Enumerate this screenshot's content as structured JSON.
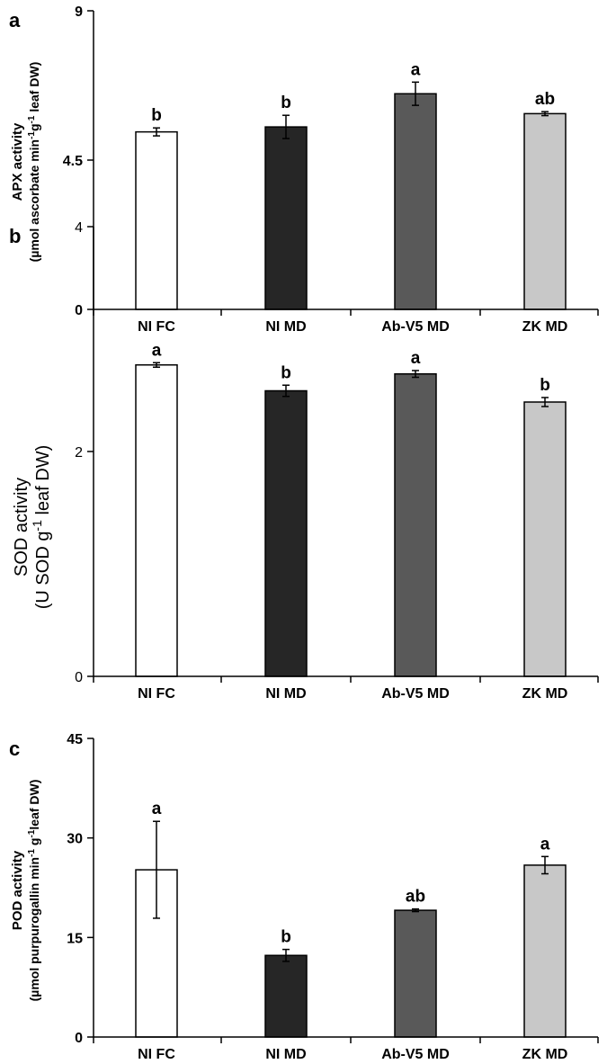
{
  "chart_data": [
    {
      "type": "bar",
      "panel_label": "a",
      "categories": [
        "NI FC",
        "NI MD",
        "Ab-V5 MD",
        "ZK MD"
      ],
      "values": [
        5.35,
        5.5,
        6.5,
        5.9
      ],
      "errors": [
        0.12,
        0.35,
        0.35,
        0.06
      ],
      "letters": [
        "b",
        "b",
        "a",
        "ab"
      ],
      "colors": [
        "#ffffff",
        "#262626",
        "#595959",
        "#c8c8c8"
      ],
      "ylim": [
        0,
        9
      ],
      "yticks": [
        "0",
        "4.5",
        "9"
      ],
      "ytick_values": [
        0,
        4.5,
        9
      ],
      "ylabel": "APX activity",
      "ylabel_units": {
        "pre": "(µmol ascorbate min",
        "sup1": "-1",
        "mid": "g",
        "sup2": "-1",
        "post": " leaf DW)"
      },
      "label_weight": "bold"
    },
    {
      "type": "bar",
      "panel_label": "b",
      "categories": [
        "NI FC",
        "NI MD",
        "Ab-V5 MD",
        "ZK MD"
      ],
      "values": [
        2.77,
        2.54,
        2.69,
        2.44
      ],
      "errors": [
        0.02,
        0.05,
        0.03,
        0.04
      ],
      "letters": [
        "a",
        "b",
        "a",
        "b"
      ],
      "colors": [
        "#ffffff",
        "#262626",
        "#595959",
        "#c8c8c8"
      ],
      "ylim": [
        0,
        4
      ],
      "yticks": [
        "0",
        "2",
        "4"
      ],
      "ytick_values": [
        0,
        2,
        4
      ],
      "ylabel": "SOD activity",
      "ylabel_units": {
        "pre": "(U SOD g",
        "sup1": "-1",
        "mid": "",
        "sup2": "",
        "post": " leaf DW)"
      },
      "label_weight": "normal"
    },
    {
      "type": "bar",
      "panel_label": "c",
      "categories": [
        "NI FC",
        "NI MD",
        "Ab-V5 MD",
        "ZK MD"
      ],
      "values": [
        25.2,
        12.3,
        19.1,
        25.9
      ],
      "errors": [
        7.3,
        0.9,
        0.2,
        1.3
      ],
      "letters": [
        "a",
        "b",
        "ab",
        "a"
      ],
      "colors": [
        "#ffffff",
        "#262626",
        "#595959",
        "#c8c8c8"
      ],
      "ylim": [
        0,
        45
      ],
      "yticks": [
        "0",
        "15",
        "30",
        "45"
      ],
      "ytick_values": [
        0,
        15,
        30,
        45
      ],
      "ylabel": "POD activity",
      "ylabel_units": {
        "pre": "(µmol purpurogallin min",
        "sup1": "-1",
        "mid": " g",
        "sup2": "-1",
        "post": "leaf DW)"
      },
      "label_weight": "bold"
    }
  ]
}
